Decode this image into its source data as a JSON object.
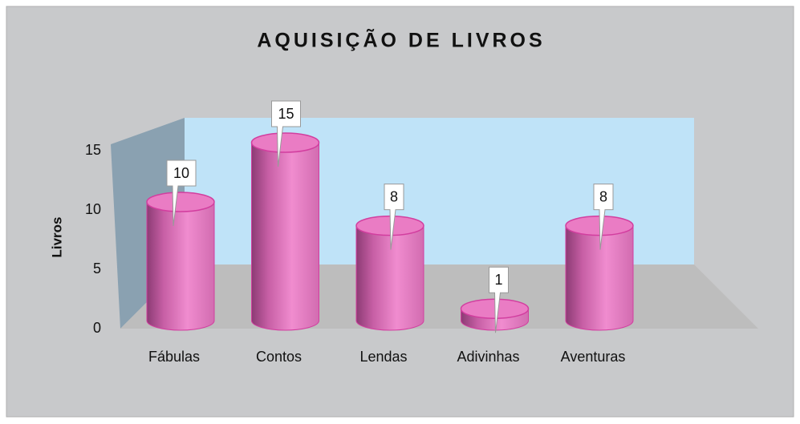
{
  "chart_data": {
    "type": "bar3d",
    "title": "AQUISIÇÃO DE LIVROS",
    "y_label": "Livros",
    "categories": [
      "Fábulas",
      "Contos",
      "Lendas",
      "Adivinhas",
      "Aventuras"
    ],
    "values": [
      10,
      15,
      8,
      1,
      8
    ],
    "color": "#e97cc3",
    "ylim": [
      0,
      15
    ],
    "yticks": [
      0,
      5,
      10,
      15
    ]
  }
}
